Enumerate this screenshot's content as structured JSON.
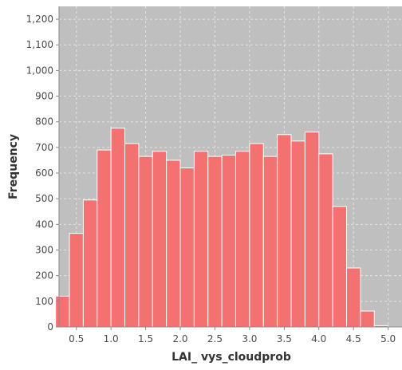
{
  "chart_data": {
    "type": "bar",
    "title": "",
    "xlabel": "LAI_ vys_cloudprob",
    "ylabel": "Frequency",
    "xlim": [
      0.25,
      5.2
    ],
    "ylim": [
      0,
      1250
    ],
    "x_ticks": [
      0.5,
      1.0,
      1.5,
      2.0,
      2.5,
      3.0,
      3.5,
      4.0,
      4.5,
      5.0
    ],
    "x_tick_labels": [
      "0.5",
      "1.0",
      "1.5",
      "2.0",
      "2.5",
      "3.0",
      "3.5",
      "4.0",
      "4.5",
      "5.0"
    ],
    "y_ticks": [
      0,
      100,
      200,
      300,
      400,
      500,
      600,
      700,
      800,
      900,
      1000,
      1100,
      1200
    ],
    "y_tick_labels": [
      "0",
      "100",
      "200",
      "300",
      "400",
      "500",
      "600",
      "700",
      "800",
      "900",
      "1,000",
      "1,100",
      "1,200"
    ],
    "bin_width": 0.2,
    "bins_start": [
      0.2,
      0.4,
      0.6,
      0.8,
      1.0,
      1.2,
      1.4,
      1.6,
      1.8,
      2.0,
      2.2,
      2.4,
      2.6,
      2.8,
      3.0,
      3.2,
      3.4,
      3.6,
      3.8,
      4.0,
      4.2,
      4.4,
      4.6,
      4.8
    ],
    "values": [
      120,
      365,
      495,
      690,
      775,
      715,
      665,
      685,
      650,
      620,
      685,
      665,
      670,
      685,
      715,
      665,
      750,
      725,
      760,
      675,
      470,
      230,
      62,
      5
    ],
    "grid": true,
    "colors": {
      "bar_fill": "#f47171",
      "bar_stroke": "#ffffff",
      "plot_background": "#bfbfbf",
      "grid": "#e2e2e2",
      "axis": "#8a8a8a"
    }
  }
}
